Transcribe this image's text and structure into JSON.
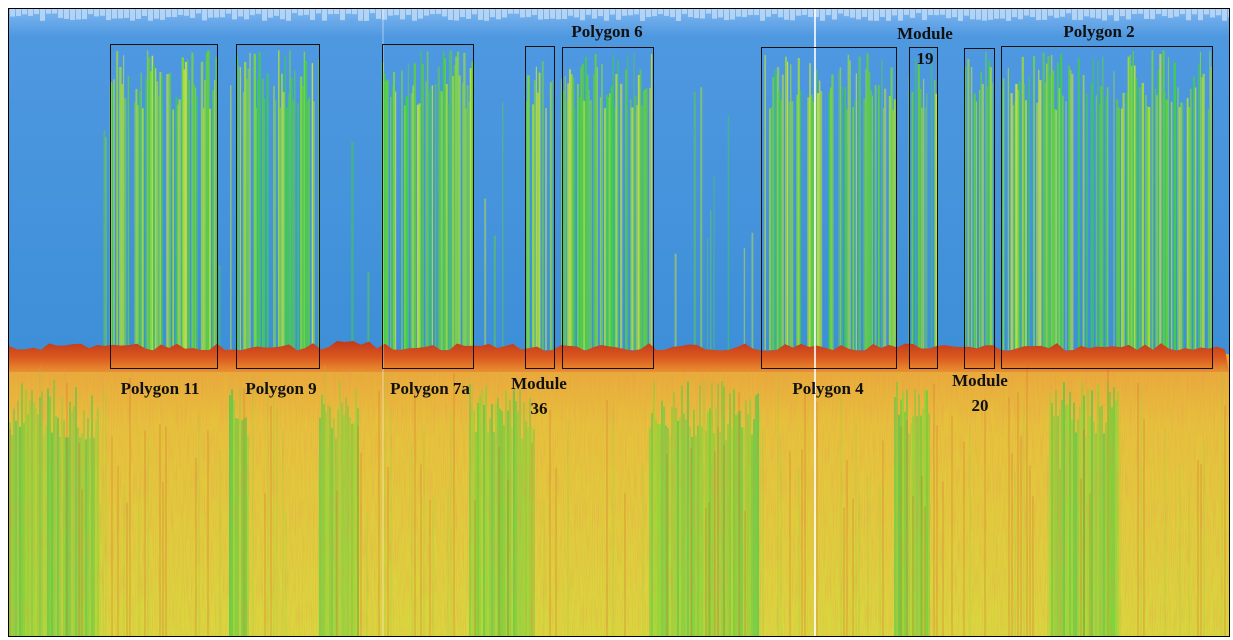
{
  "annotations": [
    {
      "lines": [
        "Polygon 11"
      ]
    },
    {
      "lines": [
        "Polygon 9"
      ]
    },
    {
      "lines": [
        "Polygon 7a"
      ]
    },
    {
      "lines": [
        "Module",
        "36"
      ]
    },
    {
      "lines": [
        "Polygon 6"
      ]
    },
    {
      "lines": [
        "Polygon 4"
      ]
    },
    {
      "lines": [
        "Module",
        "19"
      ]
    },
    {
      "lines": [
        "Module",
        "20"
      ]
    },
    {
      "lines": [
        "Polygon 2"
      ]
    }
  ]
}
